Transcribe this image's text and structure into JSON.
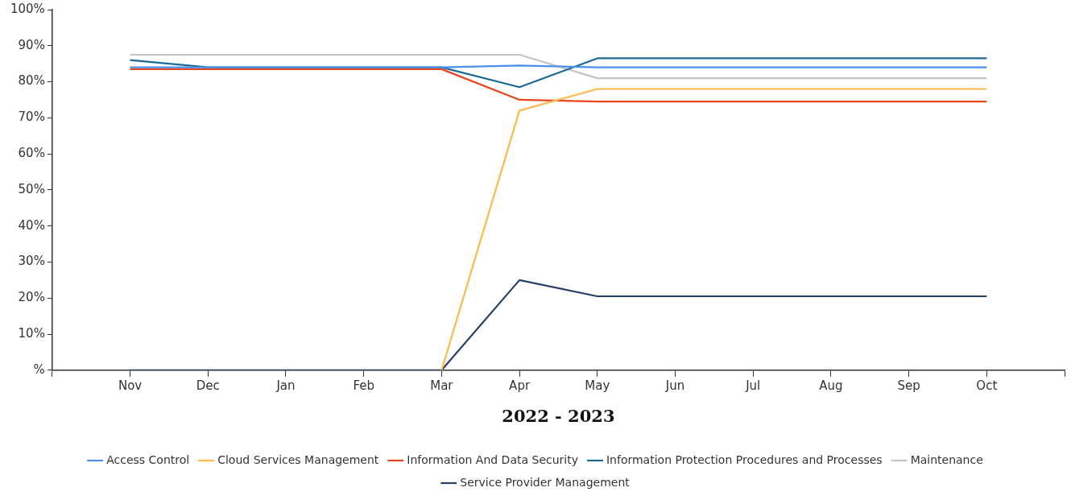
{
  "chart_data": {
    "type": "line",
    "xlabel": "2022 - 2023",
    "categories": [
      "Nov",
      "Dec",
      "Jan",
      "Feb",
      "Mar",
      "Apr",
      "May",
      "Jun",
      "Jul",
      "Aug",
      "Sep",
      "Oct"
    ],
    "ylim": [
      0,
      100
    ],
    "yticks": [
      {
        "value": 0,
        "label": "%"
      },
      {
        "value": 10,
        "label": "10%"
      },
      {
        "value": 20,
        "label": "20%"
      },
      {
        "value": 30,
        "label": "30%"
      },
      {
        "value": 40,
        "label": "40%"
      },
      {
        "value": 50,
        "label": "50%"
      },
      {
        "value": 60,
        "label": "60%"
      },
      {
        "value": 70,
        "label": "70%"
      },
      {
        "value": 80,
        "label": "80%"
      },
      {
        "value": 90,
        "label": "90%"
      },
      {
        "value": 100,
        "label": "100%"
      }
    ],
    "grid": false,
    "legend": "bottom",
    "marker": "none",
    "line_style": "solid",
    "series": [
      {
        "name": "Access Control",
        "color": "#4a90e8",
        "values": [
          84,
          84,
          84,
          84,
          84,
          84.5,
          84,
          84,
          84,
          84,
          84,
          84
        ]
      },
      {
        "name": "Cloud Services Management",
        "color": "#fdb94e",
        "values": [
          null,
          null,
          null,
          null,
          0,
          72,
          78,
          78,
          78,
          78,
          78,
          78
        ]
      },
      {
        "name": "Information And Data Security",
        "color": "#e8461c",
        "values": [
          83.5,
          83.5,
          83.5,
          83.5,
          83.5,
          75,
          74.5,
          74.5,
          74.5,
          74.5,
          74.5,
          74.5
        ]
      },
      {
        "name": "Information Protection Procedures and Processes",
        "color": "#1b6a96",
        "values": [
          86,
          84,
          84,
          84,
          84,
          78.5,
          86.5,
          86.5,
          86.5,
          86.5,
          86.5,
          86.5
        ]
      },
      {
        "name": "Maintenance",
        "color": "#c4c4c4",
        "values": [
          87.5,
          87.5,
          87.5,
          87.5,
          87.5,
          87.5,
          81,
          81,
          81,
          81,
          81,
          81
        ]
      },
      {
        "name": "Service Provider Management",
        "color": "#263f66",
        "values": [
          0,
          0,
          0,
          0,
          0,
          25,
          20.5,
          20.5,
          20.5,
          20.5,
          20.5,
          20.5
        ]
      }
    ]
  }
}
